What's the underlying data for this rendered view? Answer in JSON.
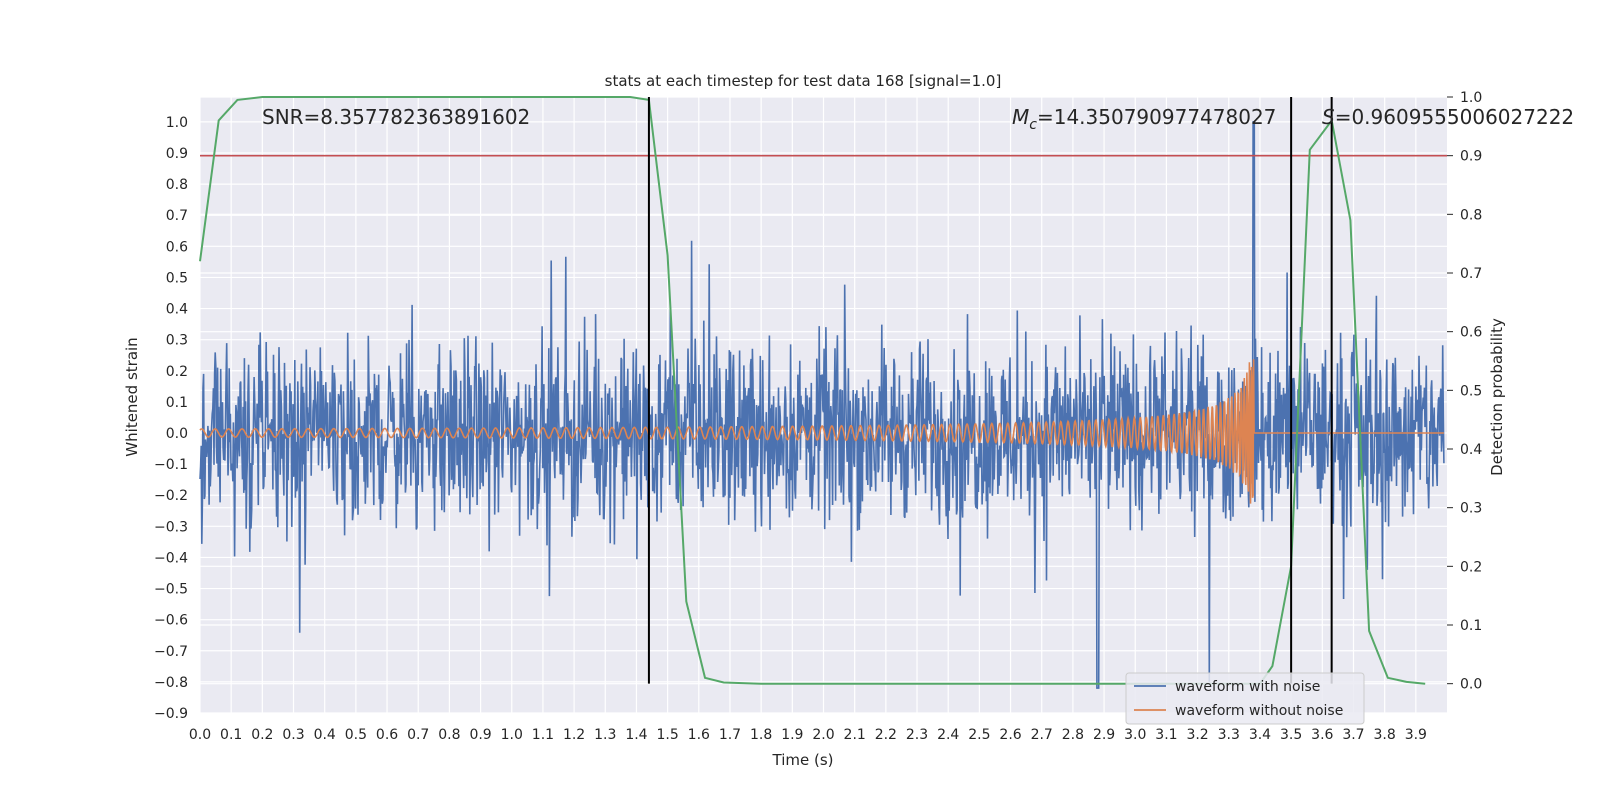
{
  "chart_data": {
    "type": "line",
    "title": "stats at each timestep for test data 168 [signal=1.0]",
    "xlabel": "Time (s)",
    "ylabel": "Whitened strain",
    "ylabel_right": "Detection probability",
    "xlim": [
      0.0,
      4.0
    ],
    "ylim": [
      -0.9,
      1.08
    ],
    "ylim_right": [
      -0.05,
      1.0
    ],
    "xticks": [
      "0.0",
      "0.1",
      "0.2",
      "0.3",
      "0.4",
      "0.5",
      "0.6",
      "0.7",
      "0.8",
      "0.9",
      "1.0",
      "1.1",
      "1.2",
      "1.3",
      "1.4",
      "1.5",
      "1.6",
      "1.7",
      "1.8",
      "1.9",
      "2.0",
      "2.1",
      "2.2",
      "2.3",
      "2.4",
      "2.5",
      "2.6",
      "2.7",
      "2.8",
      "2.9",
      "3.0",
      "3.1",
      "3.2",
      "3.3",
      "3.4",
      "3.5",
      "3.6",
      "3.7",
      "3.8",
      "3.9"
    ],
    "yticks_left": [
      "−0.9",
      "−0.8",
      "−0.7",
      "−0.6",
      "−0.5",
      "−0.4",
      "−0.3",
      "−0.2",
      "−0.1",
      "0.0",
      "0.1",
      "0.2",
      "0.3",
      "0.4",
      "0.5",
      "0.6",
      "0.7",
      "0.8",
      "0.9",
      "1.0"
    ],
    "yticks_right": [
      "0.0",
      "0.1",
      "0.2",
      "0.3",
      "0.4",
      "0.5",
      "0.6",
      "0.7",
      "0.8",
      "0.9",
      "1.0"
    ],
    "annotations": {
      "snr": "SNR=8.357782363891602",
      "mc": "=14.350790977478027",
      "s": "=0.9609555006027222"
    },
    "threshold_line": {
      "y_right": 0.9,
      "color": "#c44e52"
    },
    "vertical_lines_x": [
      1.44,
      3.5,
      3.63
    ],
    "series": [
      {
        "name": "waveform with noise",
        "color": "#4c72b0",
        "kind": "noise",
        "amplitude_range": [
          -0.8,
          1.0
        ]
      },
      {
        "name": "waveform without noise",
        "color": "#dd8452",
        "kind": "chirp",
        "merger_time": 3.38,
        "peak": 0.33
      },
      {
        "name": "detection probability",
        "color": "#55a868",
        "x": [
          0.0,
          0.06,
          0.12,
          0.2,
          0.6,
          1.0,
          1.38,
          1.44,
          1.5,
          1.56,
          1.62,
          1.68,
          1.8,
          2.5,
          3.2,
          3.4,
          3.44,
          3.5,
          3.56,
          3.63,
          3.69,
          3.75,
          3.81,
          3.87,
          3.93
        ],
        "y": [
          0.72,
          0.96,
          0.995,
          1.0,
          1.0,
          1.0,
          1.0,
          0.995,
          0.73,
          0.14,
          0.01,
          0.002,
          0.0,
          0.0,
          0.0,
          0.0,
          0.03,
          0.2,
          0.91,
          0.96,
          0.79,
          0.09,
          0.01,
          0.003,
          0.0
        ]
      }
    ],
    "legend": {
      "placement": "bottom-right",
      "entries": [
        "waveform with noise",
        "waveform without noise"
      ]
    }
  }
}
